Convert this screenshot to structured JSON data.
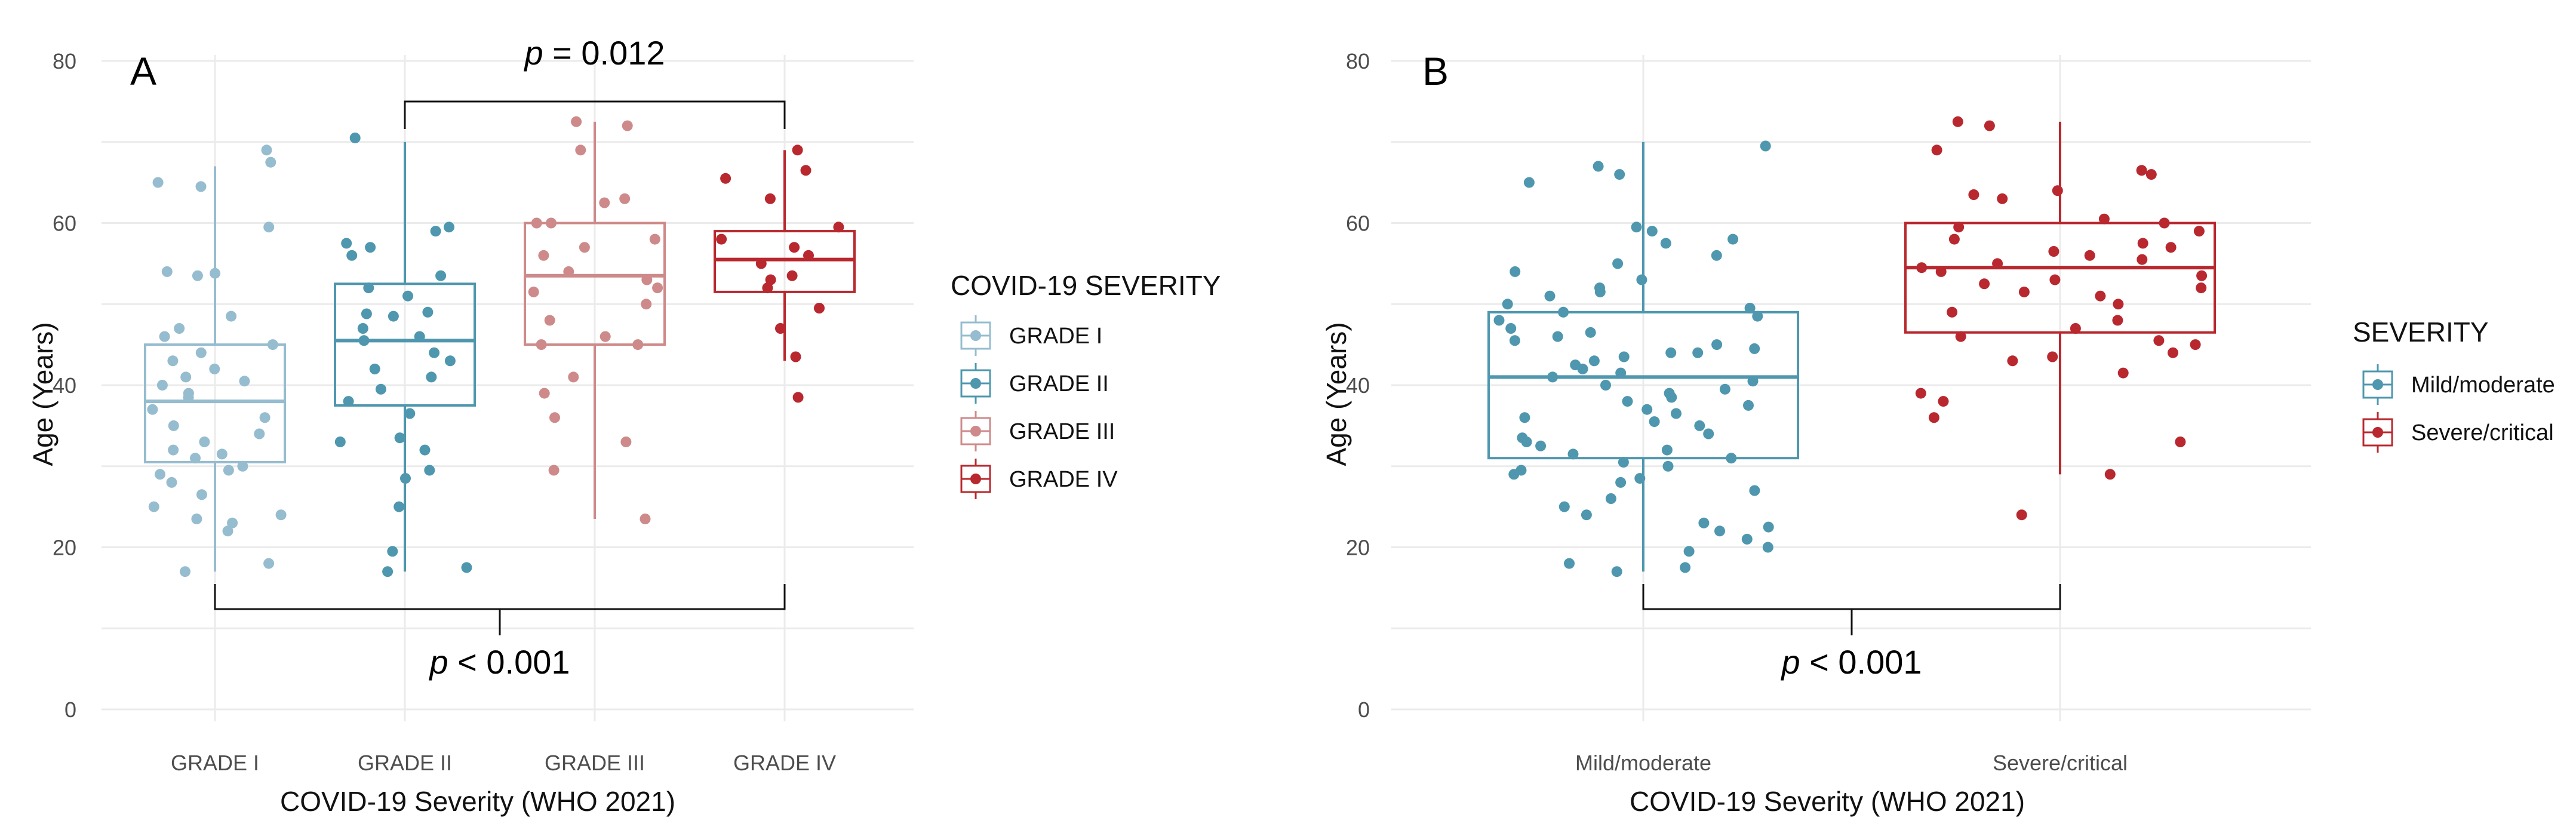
{
  "colors": {
    "grade1": "#96BCCF",
    "grade2": "#4E97AE",
    "grade3": "#CE8A8A",
    "grade4": "#B8282E",
    "mild": "#4E97AE",
    "severe": "#B8282E"
  },
  "chart_data": [
    {
      "type": "box",
      "panel_label": "A",
      "xlabel": "COVID-19 Severity (WHO 2021)",
      "ylabel": "Age (Years)",
      "ylim": [
        0,
        80
      ],
      "yticks": [
        0,
        20,
        40,
        60,
        80
      ],
      "categories": [
        "GRADE I",
        "GRADE II",
        "GRADE III",
        "GRADE IV"
      ],
      "legend": {
        "title": "COVID-19 SEVERITY",
        "entries": [
          "GRADE I",
          "GRADE II",
          "GRADE III",
          "GRADE IV"
        ],
        "position": "right"
      },
      "boxes": [
        {
          "category": "GRADE I",
          "whisker_low": 17,
          "q1": 30.5,
          "median": 38,
          "q3": 45,
          "whisker_high": 67,
          "points": [
            69,
            67.5,
            65,
            64.5,
            59.5,
            54,
            53.5,
            53.8,
            48.5,
            47,
            46,
            45,
            44,
            43,
            42,
            41,
            40,
            40.5,
            39,
            38.5,
            37,
            36,
            35,
            34,
            33,
            32,
            31.5,
            31,
            30,
            29.5,
            29,
            28,
            26.5,
            25,
            24,
            23.5,
            23,
            22,
            18,
            17
          ]
        },
        {
          "category": "GRADE II",
          "whisker_low": 17,
          "q1": 37.5,
          "median": 45.5,
          "q3": 52.5,
          "whisker_high": 70,
          "points": [
            70.5,
            59.5,
            59,
            57.5,
            57,
            56,
            53.5,
            52,
            51,
            49,
            48.8,
            48.5,
            47,
            46,
            45.5,
            44,
            43,
            42,
            41,
            39.5,
            38,
            36.5,
            33.5,
            33,
            32,
            29.5,
            28.5,
            25,
            19.5,
            17.5,
            17
          ]
        },
        {
          "category": "GRADE III",
          "whisker_low": 23.5,
          "q1": 45,
          "median": 53.5,
          "q3": 60,
          "whisker_high": 72.5,
          "points": [
            72.5,
            72,
            69,
            63,
            62.5,
            60,
            60,
            58,
            57,
            56,
            54,
            53,
            52,
            51.5,
            50,
            48,
            46,
            45,
            45,
            41,
            39,
            36,
            33,
            29.5,
            23.5
          ]
        },
        {
          "category": "GRADE IV",
          "whisker_low": 43,
          "q1": 51.5,
          "median": 55.5,
          "q3": 59,
          "whisker_high": 69,
          "points": [
            69,
            66.5,
            65.5,
            63,
            59.5,
            58,
            57,
            56,
            55,
            53.5,
            53,
            52,
            49.5,
            47,
            43.5,
            38.5
          ]
        }
      ],
      "annotations": [
        {
          "text_prefix": "p",
          "text_rest": " = 0.012",
          "from": "GRADE II",
          "to": "GRADE IV",
          "position": "top"
        },
        {
          "text_prefix": "p",
          "text_rest": " < 0.001",
          "from": "GRADE I",
          "to": "GRADE IV",
          "position": "bottom"
        }
      ]
    },
    {
      "type": "box",
      "panel_label": "B",
      "xlabel": "COVID-19 Severity (WHO 2021)",
      "ylabel": "Age (Years)",
      "ylim": [
        0,
        80
      ],
      "yticks": [
        0,
        20,
        40,
        60,
        80
      ],
      "categories": [
        "Mild/moderate",
        "Severe/critical"
      ],
      "legend": {
        "title": "SEVERITY",
        "entries": [
          "Mild/moderate",
          "Severe/critical"
        ],
        "position": "right"
      },
      "boxes": [
        {
          "category": "Mild/moderate",
          "whisker_low": 17,
          "q1": 31,
          "median": 41,
          "q3": 49,
          "whisker_high": 70,
          "points": [
            69.5,
            67,
            66,
            65,
            59.5,
            59,
            58,
            57.5,
            56,
            55,
            54,
            53,
            52,
            51.5,
            51,
            50,
            49.5,
            49,
            48.5,
            48,
            47,
            46.5,
            46,
            45.5,
            45,
            44.5,
            44,
            44,
            43.5,
            43,
            42.5,
            42,
            41.5,
            41,
            40.5,
            40,
            39.5,
            39,
            38.5,
            38,
            37.5,
            37,
            36.5,
            36,
            35.5,
            35,
            34,
            33.5,
            33,
            32.5,
            32,
            31.5,
            31,
            30.5,
            30,
            29.5,
            29,
            28.5,
            28,
            27,
            26,
            25,
            24,
            23,
            22.5,
            22,
            21,
            20,
            19.5,
            18,
            17.5,
            17
          ]
        },
        {
          "category": "Severe/critical",
          "whisker_low": 29,
          "q1": 46.5,
          "median": 54.5,
          "q3": 60,
          "whisker_high": 72.5,
          "points": [
            72.5,
            72,
            69,
            66.5,
            66,
            64,
            63.5,
            63,
            60.5,
            60,
            59.5,
            59,
            58,
            57.5,
            57,
            56.5,
            56,
            55.5,
            55,
            54.5,
            54,
            53.5,
            53,
            52.5,
            52,
            51.5,
            51,
            50,
            49,
            48,
            47,
            46,
            45.5,
            45,
            44,
            43.5,
            43,
            41.5,
            39,
            38,
            36,
            33,
            29,
            24
          ]
        }
      ],
      "annotations": [
        {
          "text_prefix": "p",
          "text_rest": " < 0.001",
          "from": "Mild/moderate",
          "to": "Severe/critical",
          "position": "bottom"
        }
      ]
    }
  ]
}
